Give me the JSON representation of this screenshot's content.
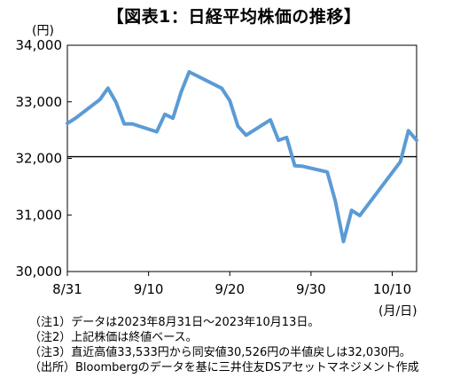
{
  "title": "【図表1：日経平均株価の推移】",
  "chart_data": {
    "type": "line",
    "title": "【図表1：日経平均株価の推移】",
    "y_unit_label": "(円)",
    "x_unit_label": "(月/日)",
    "ylim": [
      30000,
      34000
    ],
    "yticks": [
      30000,
      31000,
      32000,
      33000,
      34000
    ],
    "ytick_labels": [
      "30,000",
      "31,000",
      "32,000",
      "33,000",
      "34,000"
    ],
    "xtick_labels": [
      "8/31",
      "9/10",
      "9/20",
      "9/30",
      "10/10"
    ],
    "xtick_day_index": [
      0,
      10,
      20,
      30,
      40
    ],
    "reference_line": 32030,
    "grid": false,
    "series": [
      {
        "color": "#5b9bd5",
        "x": [
          "8/31",
          "9/1",
          "9/4",
          "9/5",
          "9/6",
          "9/7",
          "9/8",
          "9/11",
          "9/12",
          "9/13",
          "9/14",
          "9/15",
          "9/19",
          "9/20",
          "9/21",
          "9/22",
          "9/25",
          "9/26",
          "9/27",
          "9/28",
          "9/29",
          "10/2",
          "10/3",
          "10/4",
          "10/5",
          "10/6",
          "10/10",
          "10/11",
          "10/12",
          "10/13"
        ],
        "day_index": [
          0,
          1,
          4,
          5,
          6,
          7,
          8,
          11,
          12,
          13,
          14,
          15,
          19,
          20,
          21,
          22,
          25,
          26,
          27,
          28,
          29,
          32,
          33,
          34,
          35,
          36,
          40,
          41,
          42,
          43
        ],
        "values": [
          32620,
          32710,
          33040,
          33240,
          32990,
          32610,
          32610,
          32470,
          32780,
          32710,
          33170,
          33530,
          33240,
          33020,
          32570,
          32410,
          32680,
          32320,
          32370,
          31870,
          31860,
          31760,
          31240,
          30530,
          31080,
          30990,
          31750,
          31940,
          32490,
          32320
        ]
      }
    ]
  },
  "notes": [
    "（注1）データは2023年8月31日～2023年10月13日。",
    "（注2）上記株価は終値ベース。",
    "（注3）直近高値33,533円から同安値30,526円の半値戻しは32,030円。",
    "（出所）Bloombergのデータを基に三井住友DSアセットマネジメント作成"
  ]
}
